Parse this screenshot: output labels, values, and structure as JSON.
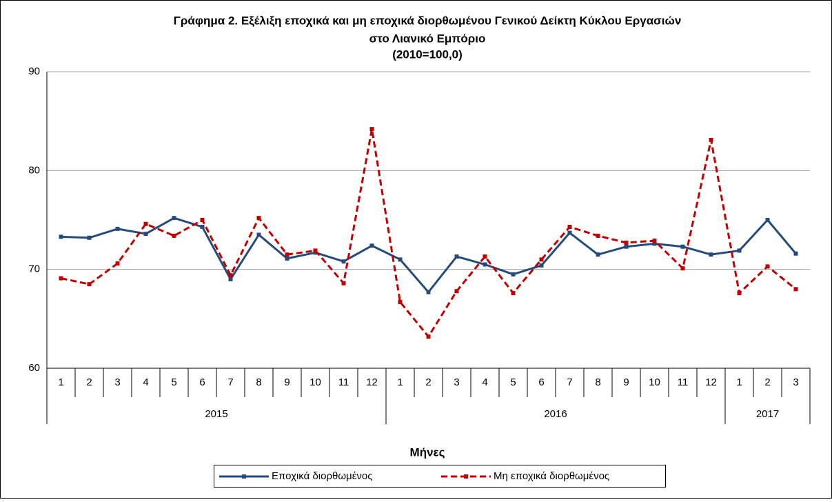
{
  "chart_data": {
    "type": "line",
    "title": [
      "Γράφημα 2. Εξέλιξη εποχικά και μη εποχικά διορθωμένου Γενικού Δείκτη Κύκλου Εργασιών",
      "στο Λιανικό Εμπόριο",
      "(2010=100,0)"
    ],
    "x_label": "Μήνες",
    "categories": [
      "1",
      "2",
      "3",
      "4",
      "5",
      "6",
      "7",
      "8",
      "9",
      "10",
      "11",
      "12",
      "1",
      "2",
      "3",
      "4",
      "5",
      "6",
      "7",
      "8",
      "9",
      "10",
      "11",
      "12",
      "1",
      "2",
      "3"
    ],
    "groups": [
      {
        "label": "2015",
        "size": 12
      },
      {
        "label": "2016",
        "size": 12
      },
      {
        "label": "2017",
        "size": 3
      }
    ],
    "series": [
      {
        "name": "Εποχικά διορθωμένος",
        "color": "#254a7c",
        "dashed": false,
        "values": [
          73.3,
          73.2,
          74.1,
          73.6,
          75.2,
          74.3,
          69.0,
          73.5,
          71.1,
          71.7,
          70.8,
          72.4,
          71.0,
          67.7,
          71.3,
          70.5,
          69.5,
          70.4,
          73.7,
          71.5,
          72.3,
          72.6,
          72.3,
          71.5,
          71.9,
          75.0,
          71.6
        ]
      },
      {
        "name": "Μη εποχικά διορθωμένος",
        "color": "#c00000",
        "dashed": true,
        "values": [
          69.1,
          68.5,
          70.6,
          74.6,
          73.4,
          75.0,
          69.4,
          75.2,
          71.5,
          71.9,
          68.6,
          84.2,
          66.7,
          63.2,
          67.8,
          71.3,
          67.6,
          71.0,
          74.3,
          73.4,
          72.7,
          72.9,
          70.1,
          83.1,
          67.6,
          70.3,
          68.0
        ]
      }
    ],
    "ylim": [
      60,
      90
    ],
    "yticks": [
      60,
      70,
      80,
      90
    ],
    "grid": true
  }
}
